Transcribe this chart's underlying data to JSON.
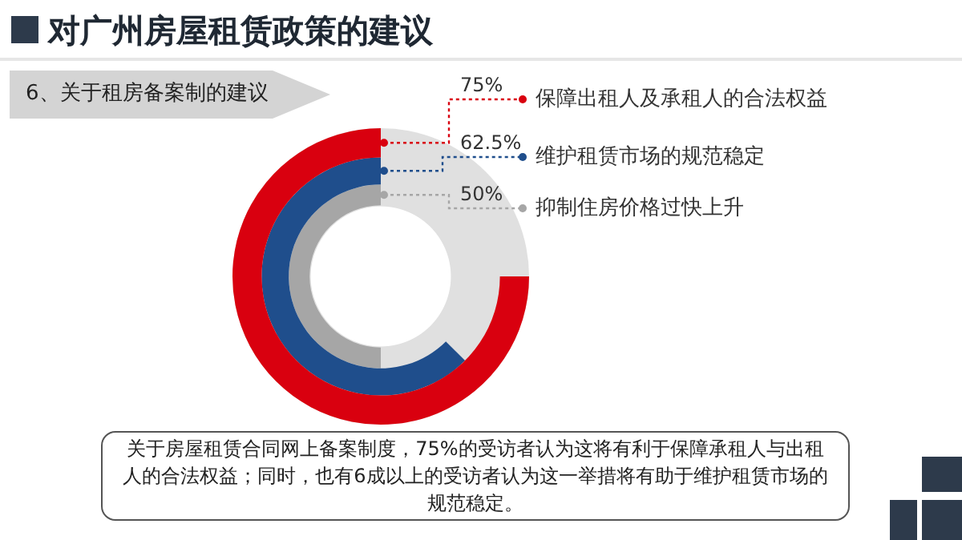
{
  "chart_data": {
    "type": "other",
    "title": "对广州房屋租赁政策的建议",
    "subtitle": "6、关于租房备案制的建议",
    "categories": [
      "保障出租人及承租人的合法权益",
      "维护租赁市场的规范稳定",
      "抑制住房价格过快上升"
    ],
    "values": [
      75,
      62.5,
      50
    ],
    "colors": [
      "#d9000f",
      "#1f4e8c",
      "#a6a6a6"
    ],
    "value_labels": [
      "75%",
      "62.5%",
      "50%"
    ],
    "annotations": [
      "关于房屋租赁合同网上备案制度，75%的受访者认为这将有利于保障承租人与出租人的合法权益；同时，也有6成以上的受访者认为这一举措将有助于维护租赁市场的规范稳定。"
    ]
  }
}
